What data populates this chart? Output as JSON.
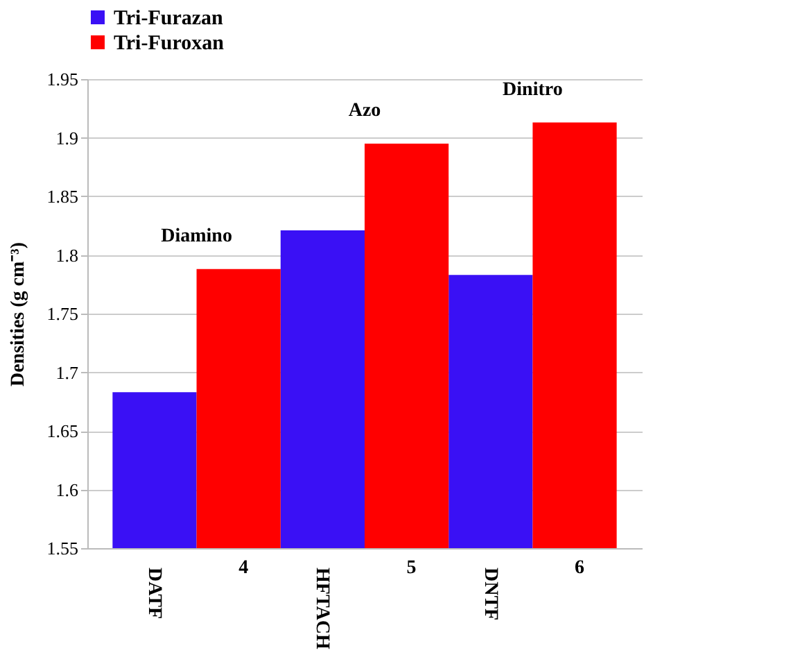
{
  "chart_data": {
    "type": "bar",
    "ylabel": "Densities (g cm⁻³)",
    "categories": [
      "DATF",
      "4",
      "HFTACH",
      "5",
      "DNTF",
      "6"
    ],
    "series": [
      {
        "name": "Tri-Furazan",
        "color": "#3a10f5",
        "values": [
          1.683,
          null,
          1.821,
          null,
          1.783,
          null
        ]
      },
      {
        "name": "Tri-Furoxan",
        "color": "#ff0000",
        "values": [
          null,
          1.788,
          null,
          1.895,
          null,
          1.913
        ]
      }
    ],
    "ylim": [
      1.55,
      1.95
    ],
    "yticks": [
      1.55,
      1.6,
      1.65,
      1.7,
      1.75,
      1.8,
      1.85,
      1.9,
      1.95
    ],
    "grid": "y",
    "legend": "top",
    "annotations": [
      "Diamino",
      "Azo",
      "Dinitro"
    ]
  }
}
